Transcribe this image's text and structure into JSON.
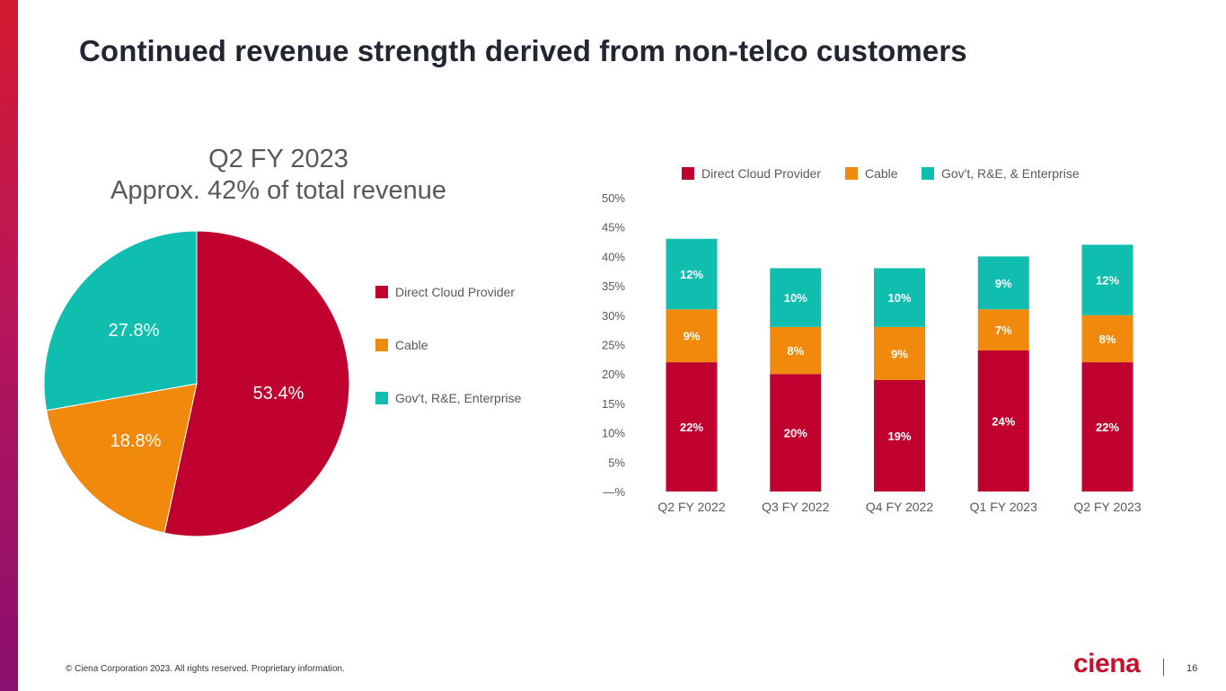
{
  "slide": {
    "title": "Continued revenue strength derived from non-telco customers",
    "footer": "© Ciena Corporation 2023. All rights reserved. Proprietary information.",
    "logo_text": "ciena",
    "page_number": "16"
  },
  "colors": {
    "direct_cloud": "#c0002e",
    "cable": "#f0890c",
    "govt": "#10beb0",
    "axis_text": "#595959"
  },
  "chart_data": [
    {
      "type": "pie",
      "title_line1": "Q2 FY 2023",
      "title_line2": "Approx. 42% of total revenue",
      "slices": [
        {
          "label": "Direct Cloud Provider",
          "value": 53.4,
          "display": "53.4%",
          "color": "#c0002e"
        },
        {
          "label": "Cable",
          "value": 18.8,
          "display": "18.8%",
          "color": "#f0890c"
        },
        {
          "label": "Gov't, R&E, Enterprise",
          "value": 27.8,
          "display": "27.8%",
          "color": "#10beb0"
        }
      ],
      "legend": [
        "Direct Cloud Provider",
        "Cable",
        "Gov't, R&E, Enterprise"
      ],
      "legend_position": "right"
    },
    {
      "type": "bar",
      "stacked": true,
      "categories": [
        "Q2 FY 2022",
        "Q3 FY 2022",
        "Q4 FY 2022",
        "Q1 FY 2023",
        "Q2 FY 2023"
      ],
      "series": [
        {
          "name": "Direct Cloud Provider",
          "values": [
            22,
            20,
            19,
            24,
            22
          ],
          "color": "#c0002e"
        },
        {
          "name": "Cable",
          "values": [
            9,
            8,
            9,
            7,
            8
          ],
          "color": "#f0890c"
        },
        {
          "name": "Gov't, R&E, & Enterprise",
          "values": [
            12,
            10,
            10,
            9,
            12
          ],
          "color": "#10beb0"
        }
      ],
      "legend_position": "top",
      "ylim": [
        0,
        50
      ],
      "yticks": [
        "—%",
        "5%",
        "10%",
        "15%",
        "20%",
        "25%",
        "30%",
        "35%",
        "40%",
        "45%",
        "50%"
      ],
      "ytick_values": [
        0,
        5,
        10,
        15,
        20,
        25,
        30,
        35,
        40,
        45,
        50
      ],
      "xlabel": "",
      "ylabel": "",
      "grid": false
    }
  ]
}
